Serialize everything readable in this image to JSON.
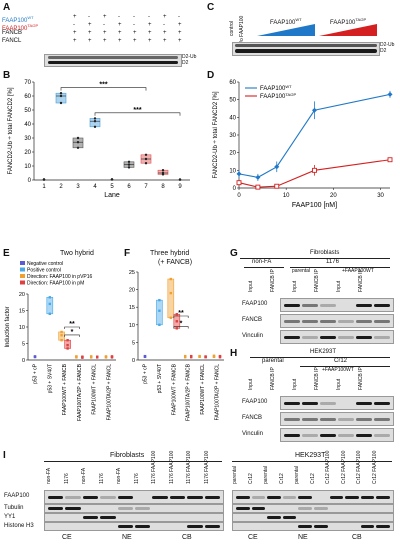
{
  "panels": {
    "A": {
      "label": "A",
      "rows": [
        {
          "name": "FAAP100",
          "sup": "WT",
          "color": "#1f78c8",
          "marks": [
            "",
            "+",
            "-",
            "+",
            "-",
            "-",
            "-",
            "+",
            "-"
          ]
        },
        {
          "name": "FAAP100",
          "sup": "TA/2P",
          "color": "#d42020",
          "marks": [
            "",
            "-",
            "+",
            "-",
            "+",
            "-",
            "+",
            "-",
            "+"
          ]
        },
        {
          "name": "FANCB",
          "sup": "",
          "color": "#111111",
          "marks": [
            "",
            "+",
            "+",
            "+",
            "+",
            "+",
            "+",
            "+",
            "+"
          ]
        },
        {
          "name": "FANCL",
          "sup": "",
          "color": "#111111",
          "marks": [
            "",
            "+",
            "+",
            "+",
            "+",
            "+",
            "+",
            "+",
            "+"
          ]
        }
      ],
      "band_labels": [
        "D2-Ub",
        "D2"
      ]
    },
    "B": {
      "label": "B",
      "ylabel": "FANCD2-Ub ÷ total FANCD2 [%]",
      "xlabel": "Lane",
      "sig": [
        "***",
        "***"
      ]
    },
    "C": {
      "label": "C",
      "lanes": [
        "control",
        "w/o FAAP100"
      ],
      "ramps": [
        {
          "name": "FAAP100",
          "sup": "WT",
          "color": "#1f78c8"
        },
        {
          "name": "FAAP100",
          "sup": "TA/2P",
          "color": "#d42020"
        }
      ],
      "band_labels": [
        "D2-Ub",
        "D2"
      ]
    },
    "D": {
      "label": "D",
      "ylabel": "FANCD2-Ub ÷ total FANCD2 [%]",
      "xlabel": "FAAP100 [nM]",
      "legend": [
        {
          "name": "FAAP100",
          "sup": "WT",
          "color": "#1f78c8"
        },
        {
          "name": "FAAP100",
          "sup": "TA/2P",
          "color": "#d42020"
        }
      ]
    },
    "E": {
      "label": "E",
      "title": "Two hybrid",
      "ylabel": "Induction factor",
      "legend": [
        {
          "text": "Negative control",
          "color": "#5b5bd6"
        },
        {
          "text": "Positive control",
          "color": "#4aa8e8"
        },
        {
          "text": "Direction: FAAP100 in pVP16",
          "color": "#f0a030"
        },
        {
          "text": "Direction: FAAP100 in pM",
          "color": "#e04040"
        }
      ],
      "xcats": [
        "p53 + cP",
        "p53 + SV40T",
        "FAAP100WT + FANCB",
        "FAAP100TA/2P + FANCB",
        "FAAP100WT + FANCL",
        "FAAP100TA/2P + FANCL"
      ],
      "sig": [
        "**",
        "*"
      ]
    },
    "F": {
      "label": "F",
      "title": "Three hybrid",
      "subtitle": "(+ FANCB)",
      "ylabel": "Induction factor",
      "xcats": [
        "p53 + cP",
        "p53 + SV40T",
        "FAAP100WT + FANCB",
        "FAAP100TA/2P + FANCB",
        "FAAP100WT + FANCL",
        "FAAP100TA/2P + FANCL"
      ],
      "sig": [
        "**",
        "*"
      ]
    },
    "G": {
      "label": "G",
      "header": "Fibroblasts",
      "groups": [
        "non-FA",
        "1176"
      ],
      "subgroups": [
        "parental",
        "+FAAP100WT"
      ],
      "lanes": [
        "Input",
        "FANCB IP",
        "Input",
        "FANCB IP",
        "Input",
        "FANCB IP"
      ],
      "rows": [
        "FAAP100",
        "FANCB",
        "Vinculin"
      ]
    },
    "H": {
      "label": "H",
      "header": "HEK293T",
      "groups": [
        "parental",
        "Cr12"
      ],
      "subgroups": [
        "+FAAP100WT"
      ],
      "lanes": [
        "Input",
        "FANCB IP",
        "Input",
        "FANCB IP",
        "Input",
        "FANCB IP"
      ],
      "rows": [
        "FAAP100",
        "FANCB",
        "Vinculin"
      ]
    },
    "I": {
      "label": "I",
      "headers": [
        "Fibroblasts",
        "HEK293T"
      ],
      "rows": [
        "FAAP100",
        "Tubulin",
        "YY1",
        "Histone H3"
      ],
      "left_lanes": [
        "non-FA",
        "1176",
        "non-FA",
        "1176",
        "non-FA",
        "1176",
        "1176 FAAP100",
        "1176 FAAP100",
        "1176 FAAP100",
        "1176 FAAP100"
      ],
      "right_lanes": [
        "parental",
        "Cr12",
        "parental",
        "Cr12",
        "parental",
        "Cr12",
        "Cr12 FAAP100",
        "Cr12 FAAP100",
        "Cr12 FAAP100",
        "Cr12 FAAP100"
      ],
      "fractions": [
        "CE",
        "NE",
        "CB"
      ]
    }
  },
  "chart_data": [
    {
      "type": "scatter",
      "panel": "B",
      "title": "",
      "xlabel": "Lane",
      "ylabel": "FANCD2-Ub ÷ total FANCD2 [%]",
      "categories": [
        "1",
        "2",
        "3",
        "4",
        "5",
        "6",
        "7",
        "8",
        "9"
      ],
      "ylim": [
        0,
        70
      ],
      "yticks": [
        0,
        10,
        20,
        30,
        40,
        50,
        60,
        70
      ],
      "box_colors": [
        "#888888",
        "#4aa0dc",
        "#555555",
        "#4aa0dc",
        "#555555",
        "#555555",
        "#e05050",
        "#e05050",
        "#e05050"
      ],
      "series": [
        {
          "lane": "1",
          "values": [
            0.2,
            0.3,
            0.5
          ]
        },
        {
          "lane": "2",
          "values": [
            55,
            60,
            62
          ]
        },
        {
          "lane": "3",
          "values": [
            23,
            27,
            30
          ]
        },
        {
          "lane": "4",
          "values": [
            38,
            42,
            44
          ]
        },
        {
          "lane": "5",
          "values": [
            0.3,
            0.5,
            0.4
          ]
        },
        {
          "lane": "6",
          "values": [
            9,
            11,
            13
          ]
        },
        {
          "lane": "7",
          "values": [
            12,
            15,
            18
          ]
        },
        {
          "lane": "8",
          "values": [
            4,
            5,
            7
          ]
        },
        {
          "lane": "9",
          "values": [
            0.2,
            0.4,
            0.3
          ]
        }
      ]
    },
    {
      "type": "line",
      "panel": "D",
      "title": "",
      "xlabel": "FAAP100 [nM]",
      "ylabel": "FANCD2-Ub ÷ total FANCD2 [%]",
      "xlim": [
        0,
        32
      ],
      "ylim": [
        0,
        60
      ],
      "xticks": [
        0,
        10,
        20,
        30
      ],
      "yticks": [
        0,
        10,
        20,
        30,
        40,
        50,
        60
      ],
      "series": [
        {
          "name": "FAAP100WT",
          "color": "#1f78c8",
          "x": [
            0,
            4,
            8,
            16,
            32
          ],
          "y": [
            8,
            6,
            12,
            44,
            53
          ],
          "err": [
            2,
            2,
            3,
            5,
            2
          ]
        },
        {
          "name": "FAAP100TA/2P",
          "color": "#d42020",
          "x": [
            0,
            4,
            8,
            16,
            32
          ],
          "y": [
            3,
            0.5,
            1,
            10,
            16
          ],
          "err": [
            1,
            0.5,
            0.5,
            3,
            1
          ]
        }
      ]
    },
    {
      "type": "bar",
      "panel": "E",
      "title": "Two hybrid",
      "ylabel": "Induction factor",
      "ylim": [
        0,
        20
      ],
      "yticks": [
        0,
        5,
        10,
        15,
        20
      ],
      "groups": [
        {
          "cat": "p53 + cP",
          "series": [
            {
              "color": "#5b5bd6",
              "values": [
                1.0,
                1.1,
                0.9
              ]
            }
          ]
        },
        {
          "cat": "p53 + SV40T",
          "series": [
            {
              "color": "#4aa8e8",
              "values": [
                14,
                17,
                19
              ]
            }
          ]
        },
        {
          "cat": "FAAP100WT + FANCB",
          "series": [
            {
              "color": "#f0a030",
              "values": [
                6,
                7.5,
                8.5
              ]
            },
            {
              "color": "#e04040",
              "values": [
                3.5,
                4.5,
                6
              ]
            }
          ]
        },
        {
          "cat": "FAAP100TA/2P + FANCB",
          "series": [
            {
              "color": "#f0a030",
              "values": [
                0.8,
                1.0,
                1.1
              ]
            },
            {
              "color": "#e04040",
              "values": [
                0.7,
                0.9,
                1.0
              ]
            }
          ]
        },
        {
          "cat": "FAAP100WT + FANCL",
          "series": [
            {
              "color": "#f0a030",
              "values": [
                0.8,
                1.0,
                1.1
              ]
            },
            {
              "color": "#e04040",
              "values": [
                0.8,
                1.0,
                1.0
              ]
            }
          ]
        },
        {
          "cat": "FAAP100TA/2P + FANCL",
          "series": [
            {
              "color": "#f0a030",
              "values": [
                0.8,
                0.9,
                1.1
              ]
            },
            {
              "color": "#e04040",
              "values": [
                0.8,
                1.0,
                1.1
              ]
            }
          ]
        }
      ]
    },
    {
      "type": "bar",
      "panel": "F",
      "title": "Three hybrid",
      "ylabel": "Induction factor",
      "ylim": [
        0,
        25
      ],
      "yticks": [
        0,
        5,
        10,
        15,
        20,
        25
      ],
      "groups": [
        {
          "cat": "p53 + cP",
          "series": [
            {
              "color": "#5b5bd6",
              "values": [
                1.0,
                1.1,
                0.9
              ]
            }
          ]
        },
        {
          "cat": "p53 + SV40T",
          "series": [
            {
              "color": "#4aa8e8",
              "values": [
                10,
                14,
                17
              ]
            }
          ]
        },
        {
          "cat": "FAAP100WT + FANCB",
          "series": [
            {
              "color": "#f0a030",
              "values": [
                12,
                19,
                23
              ]
            },
            {
              "color": "#e04040",
              "values": [
                9,
                11,
                13
              ]
            }
          ]
        },
        {
          "cat": "FAAP100TA/2P + FANCB",
          "series": [
            {
              "color": "#f0a030",
              "values": [
                0.8,
                1.0,
                1.1
              ]
            },
            {
              "color": "#e04040",
              "values": [
                0.8,
                1.0,
                1.1
              ]
            }
          ]
        },
        {
          "cat": "FAAP100WT + FANCL",
          "series": [
            {
              "color": "#f0a030",
              "values": [
                0.9,
                1.0,
                1.1
              ]
            },
            {
              "color": "#e04040",
              "values": [
                0.8,
                0.9,
                1.0
              ]
            }
          ]
        },
        {
          "cat": "FAAP100TA/2P + FANCL",
          "series": [
            {
              "color": "#f0a030",
              "values": [
                0.9,
                1.0,
                1.2
              ]
            },
            {
              "color": "#e04040",
              "values": [
                0.8,
                1.0,
                1.1
              ]
            }
          ]
        }
      ]
    }
  ]
}
